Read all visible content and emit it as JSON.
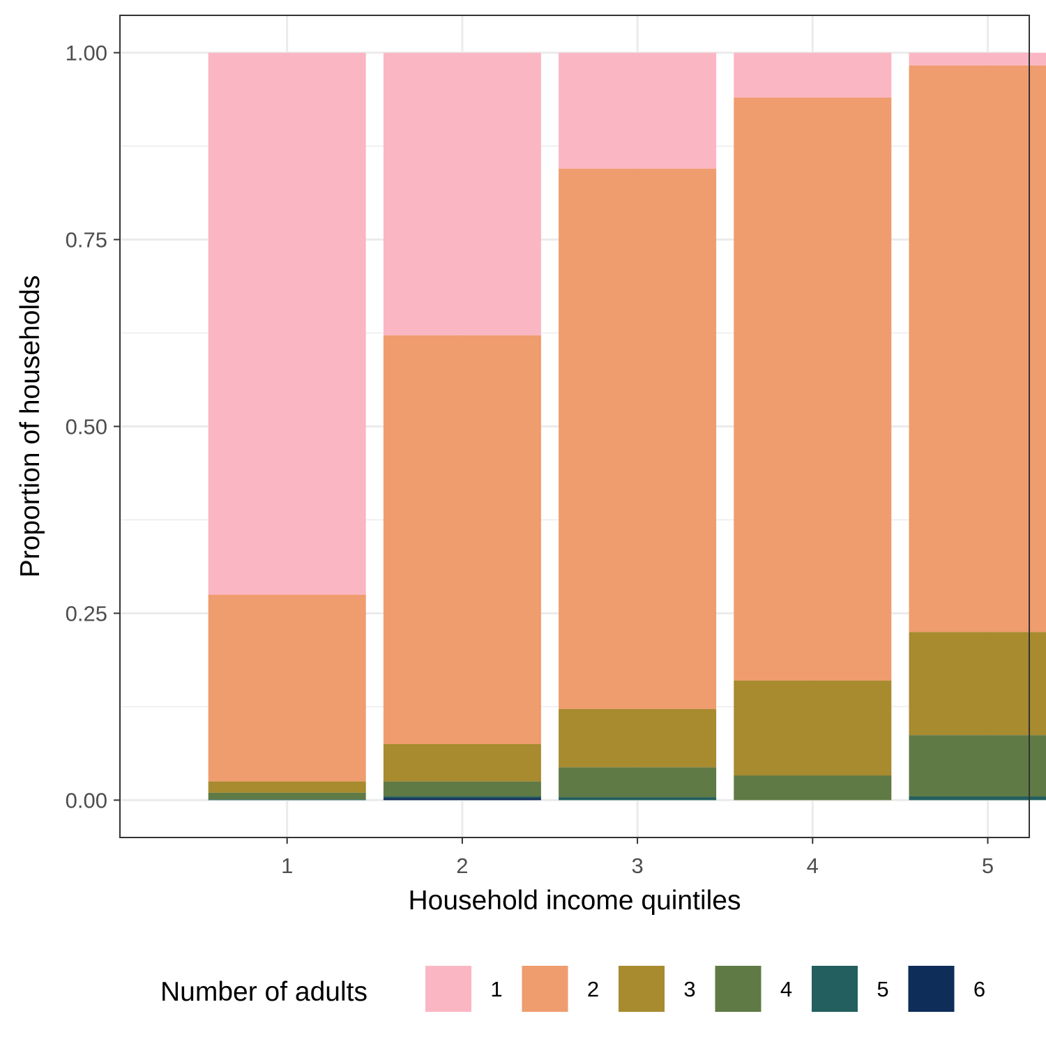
{
  "chart_data": {
    "type": "bar",
    "stacked": true,
    "categories": [
      "1",
      "2",
      "3",
      "4",
      "5"
    ],
    "xlabel": "Household income quintiles",
    "ylabel": "Proportion of households",
    "ylim": [
      -0.05,
      1.05
    ],
    "yticks": [
      0,
      0.25,
      0.5,
      0.75,
      1
    ],
    "ytick_labels": [
      "0.00",
      "0.25",
      "0.50",
      "0.75",
      "1.00"
    ],
    "grid": true,
    "legend": {
      "title": "Number of adults",
      "position": "bottom",
      "labels": [
        "1",
        "2",
        "3",
        "4",
        "5",
        "6"
      ]
    },
    "series": [
      {
        "name": "1",
        "color": "#FBB6C3",
        "values": [
          0.725,
          0.378,
          0.155,
          0.06,
          0.017
        ]
      },
      {
        "name": "2",
        "color": "#EF9C6E",
        "values": [
          0.25,
          0.547,
          0.723,
          0.78,
          0.758
        ]
      },
      {
        "name": "3",
        "color": "#A88A2F",
        "values": [
          0.015,
          0.05,
          0.078,
          0.127,
          0.138
        ]
      },
      {
        "name": "4",
        "color": "#607A45",
        "values": [
          0.009,
          0.02,
          0.04,
          0.033,
          0.082
        ]
      },
      {
        "name": "5",
        "color": "#225F5E",
        "values": [
          0.001,
          0.002,
          0.004,
          0.0,
          0.005
        ]
      },
      {
        "name": "6",
        "color": "#0E2D58",
        "values": [
          0.0,
          0.003,
          0.0,
          0.0,
          0.0
        ]
      }
    ]
  }
}
